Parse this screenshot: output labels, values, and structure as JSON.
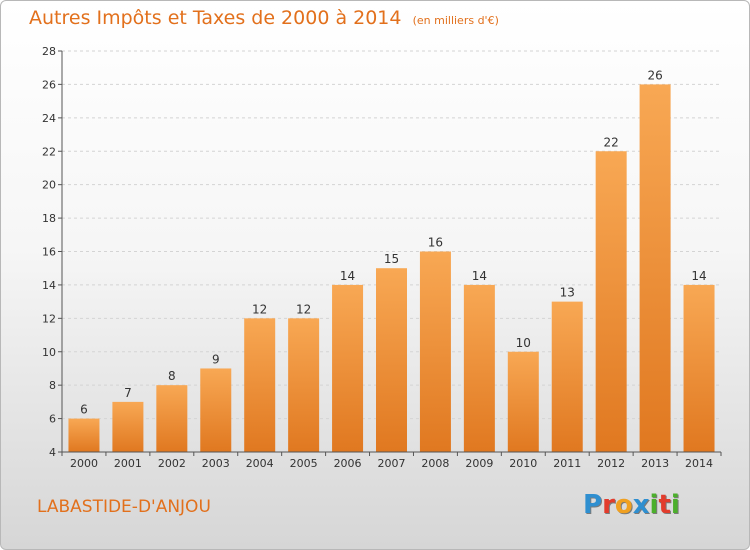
{
  "title": "Autres Impôts et Taxes de 2000 à 2014",
  "subtitle": "(en milliers d'€)",
  "city": "LABASTIDE-D'ANJOU",
  "logo": {
    "text": "Proxiti",
    "letters": [
      {
        "ch": "P",
        "color": "#2f8fd0"
      },
      {
        "ch": "r",
        "color": "#e23c2c"
      },
      {
        "ch": "o",
        "color": "#f0a020"
      },
      {
        "ch": "x",
        "color": "#2f8fd0"
      },
      {
        "ch": "i",
        "color": "#4caf2c"
      },
      {
        "ch": "t",
        "color": "#e23c2c"
      },
      {
        "ch": "i",
        "color": "#4caf2c"
      }
    ]
  },
  "colors": {
    "bar_top": "#f8a854",
    "bar_bottom": "#e07820",
    "accent": "#e2701c",
    "grid": "#d4d4d4",
    "axis": "#555555"
  },
  "chart_data": {
    "type": "bar",
    "categories": [
      "2000",
      "2001",
      "2002",
      "2003",
      "2004",
      "2005",
      "2006",
      "2007",
      "2008",
      "2009",
      "2010",
      "2011",
      "2012",
      "2013",
      "2014"
    ],
    "values": [
      6,
      7,
      8,
      9,
      12,
      12,
      14,
      15,
      16,
      14,
      10,
      13,
      22,
      26,
      14
    ],
    "ylim": [
      4,
      28
    ],
    "yticks": [
      4,
      6,
      8,
      10,
      12,
      14,
      16,
      18,
      20,
      22,
      24,
      26,
      28
    ],
    "grid": true,
    "legend": "none"
  }
}
